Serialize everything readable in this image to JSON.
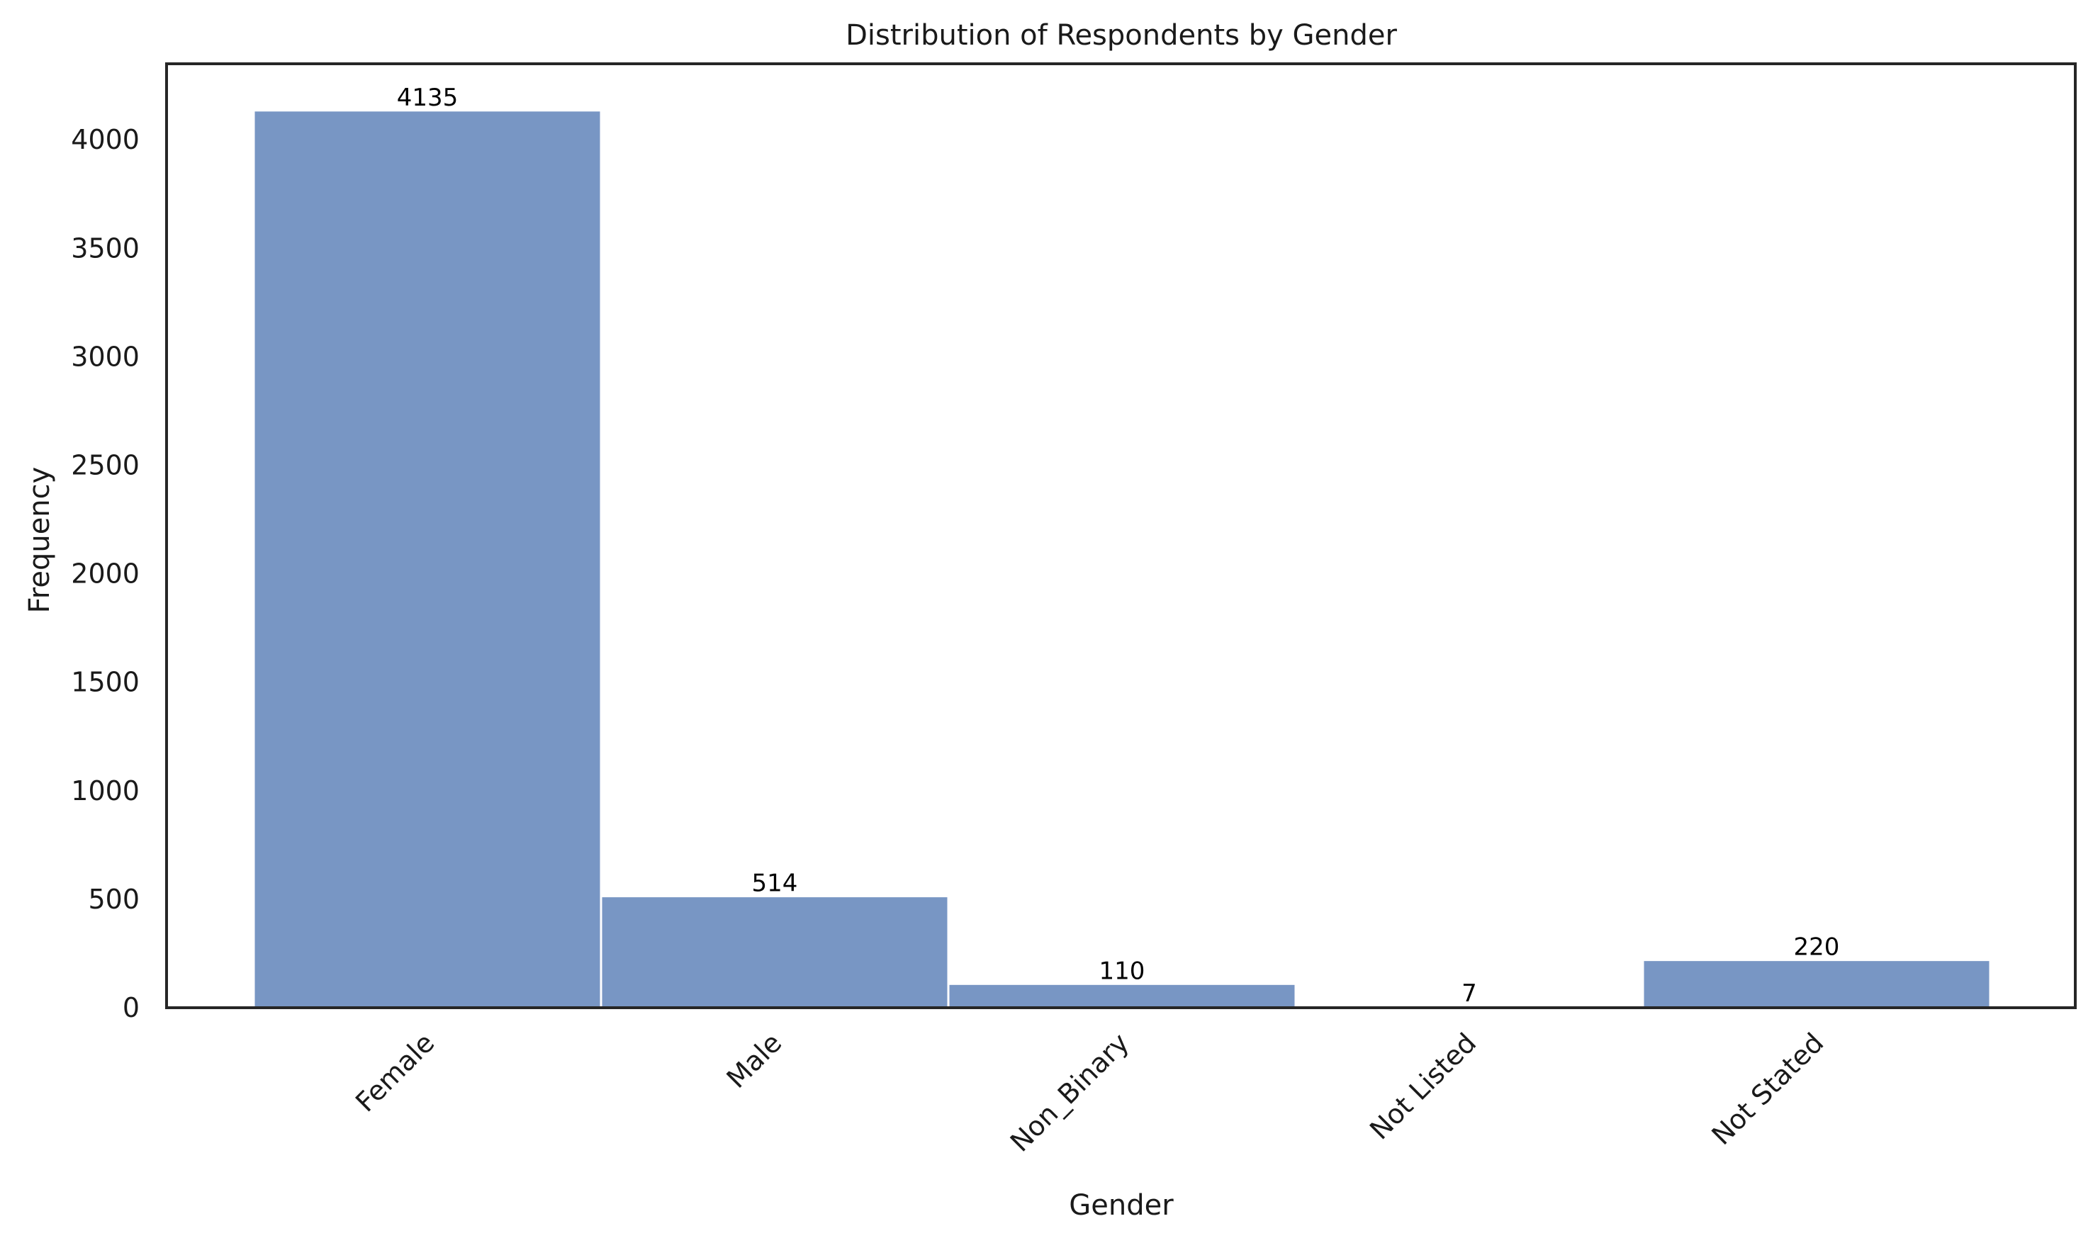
{
  "chart_data": {
    "type": "bar",
    "title": "Distribution of Respondents by Gender",
    "xlabel": "Gender",
    "ylabel": "Frequency",
    "categories": [
      "Female",
      "Male",
      "Non_Binary",
      "Not Listed",
      "Not Stated"
    ],
    "values": [
      4135,
      514,
      110,
      7,
      220
    ],
    "data_labels": [
      "4135",
      "514",
      "110",
      "7",
      "220"
    ],
    "ylim": [
      0,
      4350
    ],
    "yticks": [
      0,
      500,
      1000,
      1500,
      2000,
      2500,
      3000,
      3500,
      4000
    ],
    "ytick_labels": [
      "0",
      "500",
      "1000",
      "1500",
      "2000",
      "2500",
      "3000",
      "3500",
      "4000"
    ],
    "grid": false,
    "legend": "none",
    "bar_color": "#7896c4"
  }
}
